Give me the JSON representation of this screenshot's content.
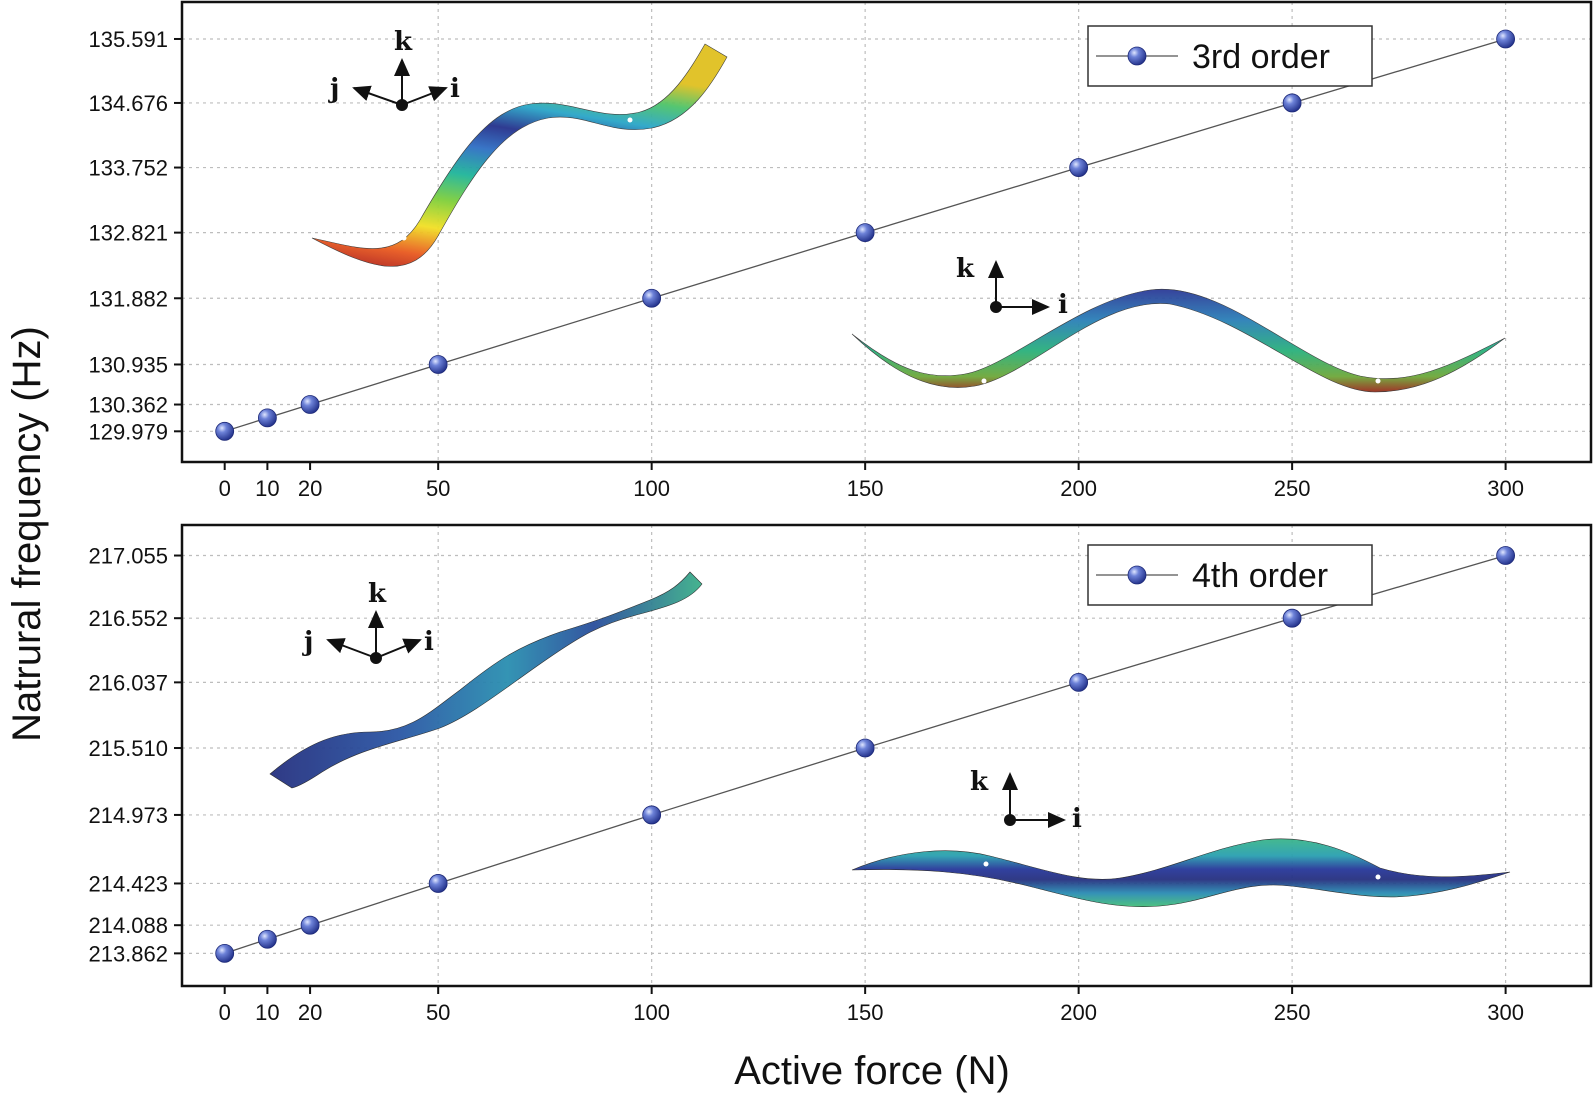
{
  "chart_data": [
    {
      "type": "line",
      "name": "panel-top",
      "categories": [
        0,
        10,
        20,
        50,
        100,
        150,
        200,
        250,
        300
      ],
      "x": [
        0,
        10,
        20,
        50,
        100,
        150,
        200,
        250,
        300
      ],
      "x_tick_labels": [
        "0",
        "10",
        "20",
        "50",
        "100",
        "150",
        "200",
        "250",
        "300"
      ],
      "series": [
        {
          "name": "3rd order",
          "values": [
            129.979,
            130.171,
            130.362,
            130.935,
            131.882,
            132.821,
            133.752,
            134.676,
            135.591
          ]
        }
      ],
      "y_ticks": [
        129.979,
        130.362,
        130.935,
        131.882,
        132.821,
        133.752,
        134.676,
        135.591
      ],
      "y_tick_labels": [
        "129.979",
        "130.362",
        "130.935",
        "131.882",
        "132.821",
        "133.752",
        "134.676",
        "135.591"
      ],
      "xlim": [
        -10,
        320
      ],
      "ylim": [
        129.54,
        136.12
      ],
      "grid": true,
      "legend": "top-right"
    },
    {
      "type": "line",
      "name": "panel-bottom",
      "categories": [
        0,
        10,
        20,
        50,
        100,
        150,
        200,
        250,
        300
      ],
      "x": [
        0,
        10,
        20,
        50,
        100,
        150,
        200,
        250,
        300
      ],
      "x_tick_labels": [
        "0",
        "10",
        "20",
        "50",
        "100",
        "150",
        "200",
        "250",
        "300"
      ],
      "series": [
        {
          "name": "4th order",
          "values": [
            213.862,
            213.975,
            214.088,
            214.423,
            214.973,
            215.51,
            216.037,
            216.552,
            217.055
          ]
        }
      ],
      "y_ticks": [
        213.862,
        214.088,
        214.423,
        214.973,
        215.51,
        216.037,
        216.552,
        217.055
      ],
      "y_tick_labels": [
        "213.862",
        "214.088",
        "214.423",
        "214.973",
        "215.510",
        "216.037",
        "216.552",
        "217.055"
      ],
      "xlim": [
        -10,
        320
      ],
      "ylim": [
        213.6,
        217.3
      ],
      "grid": true,
      "legend": "top-right"
    }
  ],
  "ylabel": "Natrural frequency (Hz)",
  "xlabel": "Active force (N)",
  "coord_labels": {
    "i": "i",
    "j": "j",
    "k": "k"
  },
  "colors": {
    "marker": "#3a4fb0",
    "marker_highlight": "#aab8ee",
    "line": "#555555"
  },
  "insets": [
    "twisted-mode-shape-3d",
    "bending-mode-shape-side",
    "twisted-mode-shape-3d",
    "bending-mode-shape-side"
  ]
}
